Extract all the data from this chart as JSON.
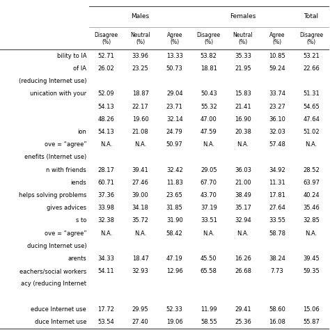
{
  "col_groups": [
    "Males",
    "Females",
    "Total"
  ],
  "col_group_cols": [
    3,
    3,
    1
  ],
  "col_headers": [
    "Disagree\n(%)",
    "Neutral\n(%)",
    "Agree\n(%)",
    "Disagree\n(%)",
    "Neutral\n(%)",
    "Agree\n(%)",
    "Disagree\n(%)"
  ],
  "rows": [
    {
      "label": "bility to IA",
      "vals": [
        "52.71",
        "33.96",
        "13.33",
        "53.82",
        "35.33",
        "10.85",
        "53.21"
      ],
      "section": false
    },
    {
      "label": "of IA",
      "vals": [
        "26.02",
        "23.25",
        "50.73",
        "18.81",
        "21.95",
        "59.24",
        "22.66"
      ],
      "section": false
    },
    {
      "label": "(reducing Internet use)",
      "vals": [
        "",
        "",
        "",
        "",
        "",
        "",
        ""
      ],
      "section": true
    },
    {
      "label": "unication with your",
      "vals": [
        "52.09",
        "18.87",
        "29.04",
        "50.43",
        "15.83",
        "33.74",
        "51.31"
      ],
      "section": false
    },
    {
      "label": "",
      "vals": [
        "54.13",
        "22.17",
        "23.71",
        "55.32",
        "21.41",
        "23.27",
        "54.65"
      ],
      "section": false
    },
    {
      "label": "",
      "vals": [
        "48.26",
        "19.60",
        "32.14",
        "47.00",
        "16.90",
        "36.10",
        "47.64"
      ],
      "section": false
    },
    {
      "label": "ion",
      "vals": [
        "54.13",
        "21.08",
        "24.79",
        "47.59",
        "20.38",
        "32.03",
        "51.02"
      ],
      "section": false
    },
    {
      "label": "ove = “agree”",
      "vals": [
        "N.A.",
        "N.A.",
        "50.97",
        "N.A.",
        "N.A.",
        "57.48",
        "N.A."
      ],
      "section": false
    },
    {
      "label": "enefits (Internet use)",
      "vals": [
        "",
        "",
        "",
        "",
        "",
        "",
        ""
      ],
      "section": true
    },
    {
      "label": "n with friends",
      "vals": [
        "28.17",
        "39.41",
        "32.42",
        "29.05",
        "36.03",
        "34.92",
        "28.52"
      ],
      "section": false
    },
    {
      "label": "iends",
      "vals": [
        "60.71",
        "27.46",
        "11.83",
        "67.70",
        "21.00",
        "11.31",
        "63.97"
      ],
      "section": false
    },
    {
      "label": "helps solving problems",
      "vals": [
        "37.36",
        "39.00",
        "23.65",
        "43.70",
        "38.49",
        "17.81",
        "40.24"
      ],
      "section": false
    },
    {
      "label": "gives advices",
      "vals": [
        "33.98",
        "34.18",
        "31.85",
        "37.19",
        "35.17",
        "27.64",
        "35.46"
      ],
      "section": false
    },
    {
      "label": "s to",
      "vals": [
        "32.38",
        "35.72",
        "31.90",
        "33.51",
        "32.94",
        "33.55",
        "32.85"
      ],
      "section": false
    },
    {
      "label": "ove = “agree”",
      "vals": [
        "N.A.",
        "N.A.",
        "58.42",
        "N.A.",
        "N.A.",
        "58.78",
        "N.A."
      ],
      "section": false
    },
    {
      "label": "ducing Internet use)",
      "vals": [
        "",
        "",
        "",
        "",
        "",
        "",
        ""
      ],
      "section": true
    },
    {
      "label": "arents",
      "vals": [
        "34.33",
        "18.47",
        "47.19",
        "45.50",
        "16.26",
        "38.24",
        "39.45"
      ],
      "section": false
    },
    {
      "label": "eachers/social workers",
      "vals": [
        "54.11",
        "32.93",
        "12.96",
        "65.58",
        "26.68",
        "7.73",
        "59.35"
      ],
      "section": false
    },
    {
      "label": "acy (reducing Internet",
      "vals": [
        "",
        "",
        "",
        "",
        "",
        "",
        ""
      ],
      "section": true
    },
    {
      "label": "",
      "vals": [
        "",
        "",
        "",
        "",
        "",
        "",
        ""
      ],
      "section": false
    },
    {
      "label": "educe Internet use",
      "vals": [
        "17.72",
        "29.95",
        "52.33",
        "11.99",
        "29.41",
        "58.60",
        "15.06"
      ],
      "section": false
    },
    {
      "label": "duce Internet use",
      "vals": [
        "53.54",
        "27.40",
        "19.06",
        "58.55",
        "25.36",
        "16.08",
        "55.87"
      ],
      "section": false
    }
  ],
  "figsize": [
    4.74,
    4.74
  ],
  "dpi": 100,
  "bg_color": "#ffffff",
  "text_color": "#000000",
  "font_size_data": 6.0,
  "font_size_header": 6.0,
  "font_size_group": 6.5
}
